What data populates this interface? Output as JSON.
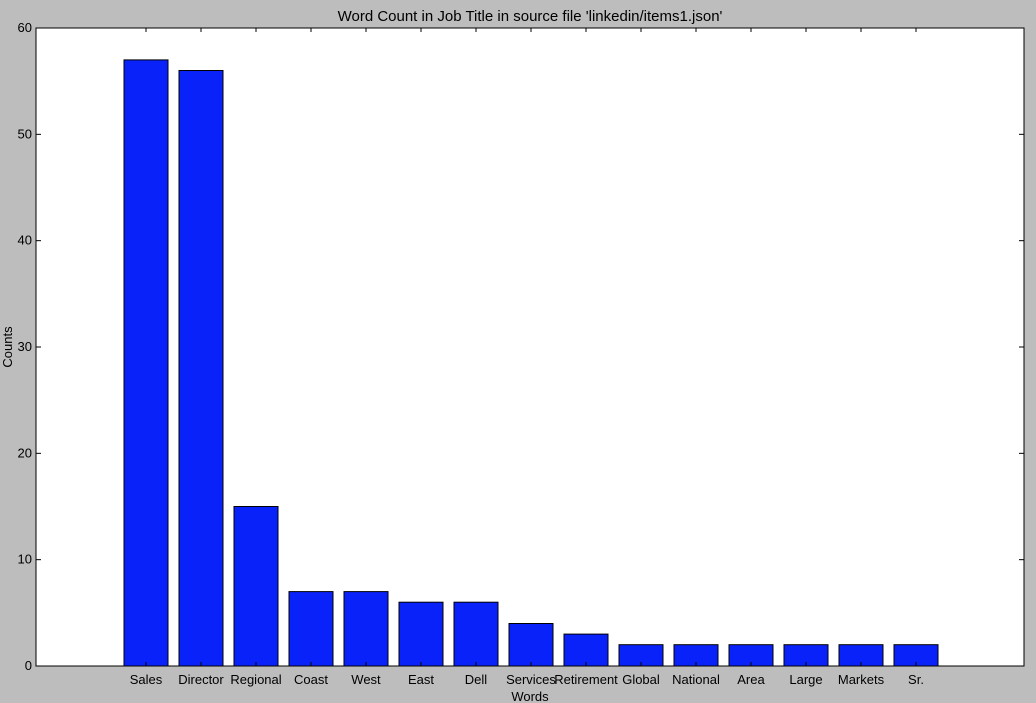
{
  "chart_data": {
    "type": "bar",
    "title": "Word Count in Job Title in source file 'linkedin/items1.json'",
    "xlabel": "Words",
    "ylabel": "Counts",
    "categories": [
      "Sales",
      "Director",
      "Regional",
      "Coast",
      "West",
      "East",
      "Dell",
      "Services",
      "Retirement",
      "Global",
      "National",
      "Area",
      "Large",
      "Markets",
      "Sr."
    ],
    "values": [
      57,
      56,
      15,
      7,
      7,
      6,
      6,
      4,
      3,
      2,
      2,
      2,
      2,
      2,
      2
    ],
    "ylim": [
      0,
      60
    ],
    "yticks": [
      0,
      10,
      20,
      30,
      40,
      50,
      60
    ],
    "grid": false,
    "colors": {
      "bar": "#0a22fa",
      "bar_edge": "#000000",
      "plot_bg": "#ffffff",
      "figure_bg": "#bdbdbd"
    }
  }
}
